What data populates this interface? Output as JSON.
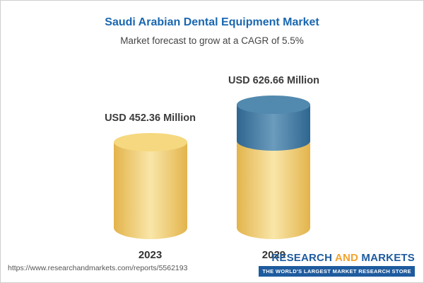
{
  "chart_data": {
    "type": "bar",
    "title": "Saudi Arabian Dental Equipment Market",
    "subtitle": "Market forecast to grow at a CAGR of 5.5%",
    "categories": [
      "2023",
      "2029"
    ],
    "values": [
      452.36,
      626.66
    ],
    "value_labels": [
      "USD 452.36 Million",
      "USD 626.66 Million"
    ],
    "unit": "USD Million",
    "ylim": [
      0,
      626.66
    ],
    "grid": false,
    "legend": "none",
    "colors": {
      "bar_fill": "#F2CD6C",
      "growth_segment_fill": "#4379A1",
      "title_text": "#1A67B0"
    },
    "notes": "2029 bar shows growth portion above 2023 level as blue cylinder segment"
  },
  "footer": {
    "url": "https://www.researchandmarkets.com/reports/5562193",
    "logo": {
      "part1": "RESEARCH",
      "part2": "AND",
      "part3": "MARKETS",
      "tagline": "THE WORLD'S LARGEST MARKET RESEARCH STORE"
    }
  }
}
